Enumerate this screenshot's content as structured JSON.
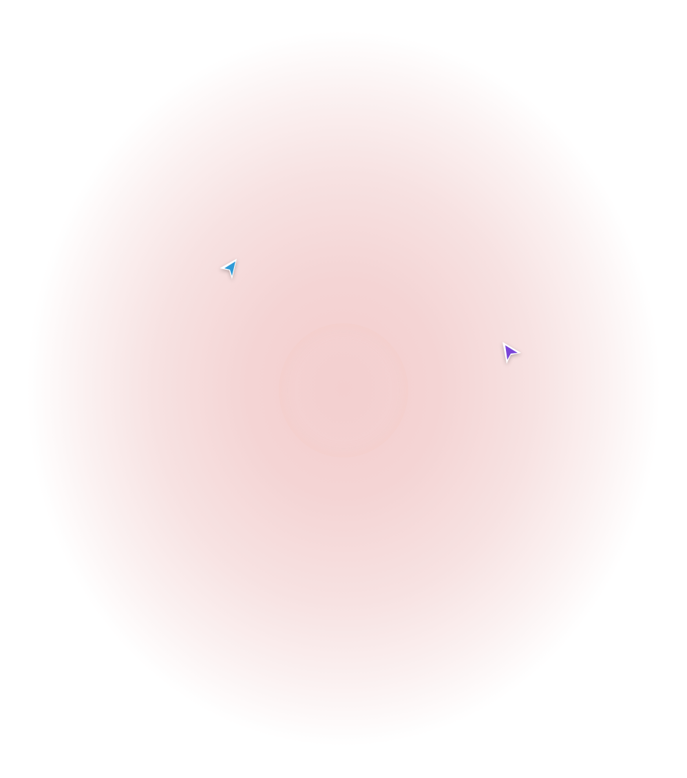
{
  "cursors": [
    {
      "name": "blue-cursor",
      "color": "#2f9ad6"
    },
    {
      "name": "purple-cursor",
      "color": "#7a45d8"
    }
  ],
  "background": {
    "center_color": "#f3cfcf",
    "edge_color": "#ffffff"
  }
}
